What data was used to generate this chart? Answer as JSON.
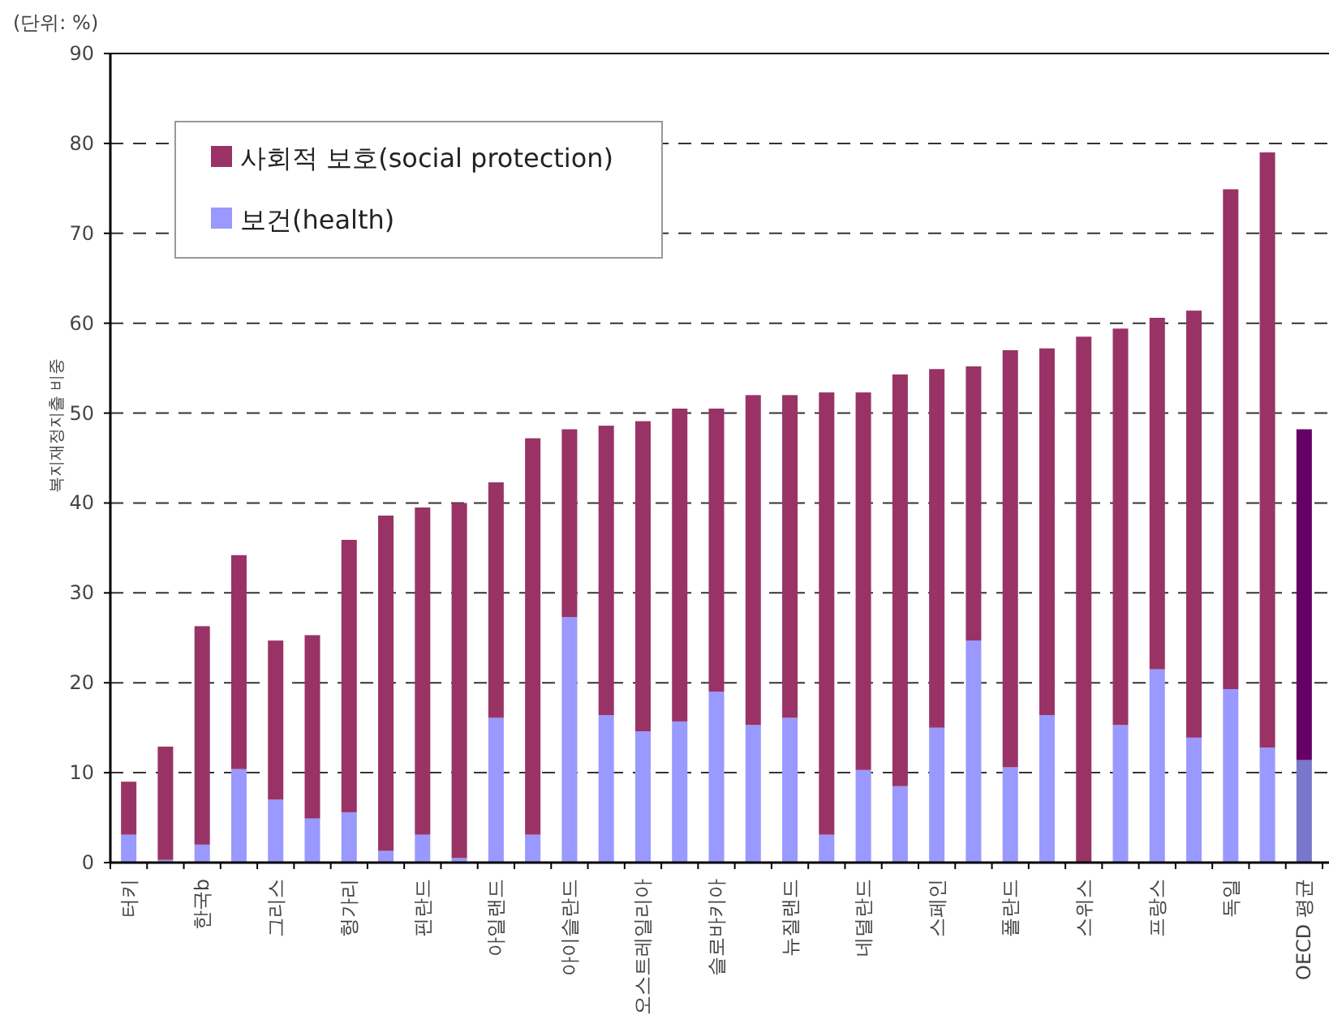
{
  "chart_data": {
    "type": "bar",
    "stacked": true,
    "annotations": [
      "(단위: %)"
    ],
    "ylabel": "복지재정지출 비중",
    "categories": [
      "터키",
      null,
      "한국b",
      null,
      "그리스",
      null,
      "헝가리",
      null,
      "핀란드",
      null,
      "아일랜드",
      null,
      "아이슬란드",
      null,
      "오스트레일리아",
      null,
      "슬로바키아",
      null,
      "뉴질랜드",
      null,
      "네덜란드",
      null,
      "스페인",
      null,
      "폴란드",
      null,
      "스위스",
      null,
      "프랑스",
      null,
      "독일",
      null,
      "OECD 평균"
    ],
    "series": [
      {
        "name": "보건(health)",
        "color": "#9999ff",
        "colors": [
          "#9999ff",
          "#9999ff",
          "#9999ff",
          "#9999ff",
          "#9999ff",
          "#9999ff",
          "#9999ff",
          "#9999ff",
          "#9999ff",
          "#9999ff",
          "#9999ff",
          "#9999ff",
          "#9999ff",
          "#9999ff",
          "#9999ff",
          "#9999ff",
          "#9999ff",
          "#9999ff",
          "#9999ff",
          "#9999ff",
          "#9999ff",
          "#9999ff",
          "#9999ff",
          "#9999ff",
          "#9999ff",
          "#9999ff",
          null,
          "#9999ff",
          "#9999ff",
          "#9999ff",
          "#9999ff",
          "#9999ff",
          "#7777cc"
        ],
        "values": [
          3.1,
          0.3,
          2.0,
          10.4,
          7.0,
          4.9,
          5.6,
          1.3,
          3.1,
          0.5,
          16.1,
          3.1,
          27.3,
          16.4,
          14.6,
          15.7,
          19.0,
          15.3,
          16.1,
          3.1,
          10.3,
          8.5,
          15.0,
          24.7,
          10.6,
          16.4,
          null,
          15.3,
          21.5,
          13.9,
          19.3,
          12.8,
          11.4
        ]
      },
      {
        "name": "사회적 보호(social protection)",
        "color": "#993366",
        "colors": [
          "#993366",
          "#993366",
          "#993366",
          "#993366",
          "#993366",
          "#993366",
          "#993366",
          "#993366",
          "#993366",
          "#993366",
          "#993366",
          "#993366",
          "#993366",
          "#993366",
          "#993366",
          "#993366",
          "#993366",
          "#993366",
          "#993366",
          "#993366",
          "#993366",
          "#993366",
          "#993366",
          "#993366",
          "#993366",
          "#993366",
          "#993366",
          "#993366",
          "#993366",
          "#993366",
          "#993366",
          "#993366",
          "#660066"
        ],
        "values": [
          5.9,
          12.6,
          24.3,
          23.8,
          17.7,
          20.4,
          30.3,
          37.3,
          36.4,
          39.5,
          26.2,
          44.1,
          20.9,
          32.2,
          34.5,
          34.8,
          31.5,
          36.7,
          35.9,
          49.2,
          42.0,
          45.8,
          39.9,
          30.5,
          46.4,
          40.8,
          58.5,
          44.1,
          39.1,
          47.5,
          55.6,
          66.2,
          36.8
        ]
      }
    ],
    "ylim": [
      0,
      90
    ],
    "yticks": [
      0,
      10,
      20,
      30,
      40,
      50,
      60,
      70,
      80,
      90
    ],
    "grid": "y",
    "legend": "top left"
  }
}
